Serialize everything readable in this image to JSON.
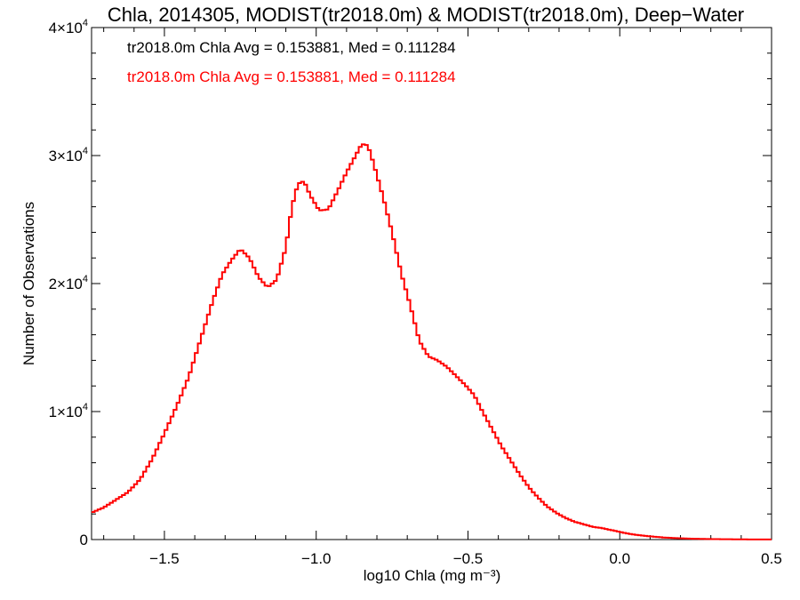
{
  "chart_data": {
    "type": "step",
    "title": "Chla, 2014305, MODIST(tr2018.0m) & MODIST(tr2018.0m), Deep−Water",
    "xlabel": "log10 Chla (mg m⁻³)",
    "ylabel": "Number of Observations",
    "xlim": [
      -1.74,
      0.5
    ],
    "ylim": [
      0,
      40000
    ],
    "x_ticks": [
      -1.5,
      -1.0,
      -0.5,
      0.0,
      0.5
    ],
    "x_tick_labels": [
      "−1.5",
      "−1.0",
      "−0.5",
      "0.0",
      "0.5"
    ],
    "y_ticks": [
      {
        "value": 0,
        "base": "0",
        "exp": ""
      },
      {
        "value": 10000,
        "base": "1×10",
        "exp": "4"
      },
      {
        "value": 20000,
        "base": "2×10",
        "exp": "4"
      },
      {
        "value": 30000,
        "base": "3×10",
        "exp": "4"
      },
      {
        "value": 40000,
        "base": "4×10",
        "exp": "4"
      }
    ],
    "annotations": [
      {
        "text": "tr2018.0m Chla Avg = 0.153881, Med = 0.111284",
        "color": "#000000"
      },
      {
        "text": "tr2018.0m Chla Avg = 0.153881, Med = 0.111284",
        "color": "#ff0000"
      }
    ],
    "series": [
      {
        "color": "#ff0000",
        "points": [
          [
            -1.74,
            2100
          ],
          [
            -1.7,
            2500
          ],
          [
            -1.66,
            3100
          ],
          [
            -1.62,
            3700
          ],
          [
            -1.58,
            4700
          ],
          [
            -1.54,
            6300
          ],
          [
            -1.5,
            8300
          ],
          [
            -1.46,
            10400
          ],
          [
            -1.42,
            12700
          ],
          [
            -1.38,
            15700
          ],
          [
            -1.34,
            18700
          ],
          [
            -1.31,
            20700
          ],
          [
            -1.28,
            21800
          ],
          [
            -1.25,
            22700
          ],
          [
            -1.22,
            22000
          ],
          [
            -1.19,
            20500
          ],
          [
            -1.16,
            19700
          ],
          [
            -1.13,
            20300
          ],
          [
            -1.1,
            22800
          ],
          [
            -1.08,
            26000
          ],
          [
            -1.06,
            27800
          ],
          [
            -1.04,
            28000
          ],
          [
            -1.02,
            26900
          ],
          [
            -0.99,
            25700
          ],
          [
            -0.96,
            25800
          ],
          [
            -0.93,
            27200
          ],
          [
            -0.9,
            28700
          ],
          [
            -0.87,
            30000
          ],
          [
            -0.85,
            30900
          ],
          [
            -0.83,
            30800
          ],
          [
            -0.81,
            29300
          ],
          [
            -0.78,
            26800
          ],
          [
            -0.75,
            24000
          ],
          [
            -0.72,
            20800
          ],
          [
            -0.69,
            18300
          ],
          [
            -0.66,
            15500
          ],
          [
            -0.63,
            14300
          ],
          [
            -0.6,
            14000
          ],
          [
            -0.57,
            13500
          ],
          [
            -0.54,
            12800
          ],
          [
            -0.51,
            12100
          ],
          [
            -0.48,
            11300
          ],
          [
            -0.45,
            9900
          ],
          [
            -0.42,
            8600
          ],
          [
            -0.39,
            7300
          ],
          [
            -0.36,
            6200
          ],
          [
            -0.33,
            5100
          ],
          [
            -0.3,
            4100
          ],
          [
            -0.27,
            3300
          ],
          [
            -0.24,
            2600
          ],
          [
            -0.21,
            2100
          ],
          [
            -0.18,
            1700
          ],
          [
            -0.15,
            1400
          ],
          [
            -0.12,
            1200
          ],
          [
            -0.09,
            1000
          ],
          [
            -0.06,
            900
          ],
          [
            -0.03,
            750
          ],
          [
            0.0,
            600
          ],
          [
            0.03,
            450
          ],
          [
            0.06,
            350
          ],
          [
            0.1,
            250
          ],
          [
            0.15,
            150
          ],
          [
            0.2,
            100
          ],
          [
            0.25,
            60
          ],
          [
            0.3,
            40
          ],
          [
            0.35,
            25
          ],
          [
            0.4,
            15
          ],
          [
            0.45,
            10
          ],
          [
            0.5,
            5
          ]
        ]
      }
    ]
  }
}
